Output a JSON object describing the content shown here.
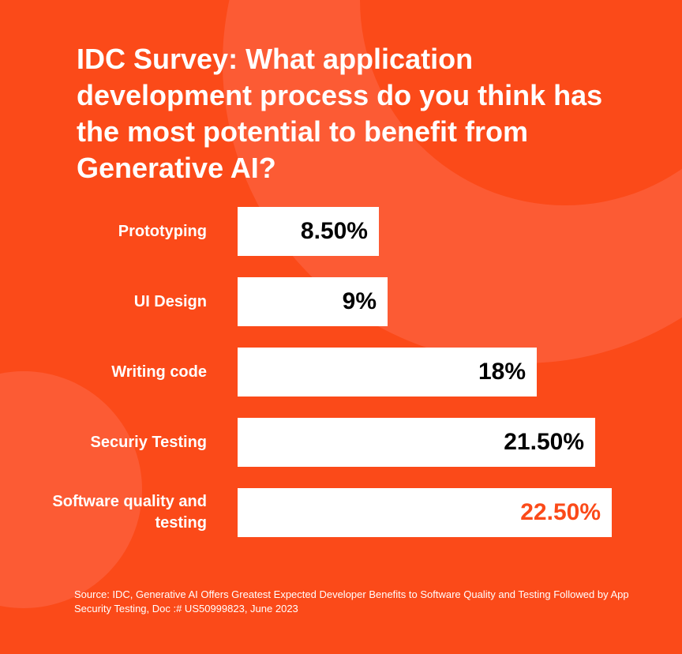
{
  "title": "IDC Survey: What application development process do you think has the most potential to benefit from Generative AI?",
  "source": "Source: IDC, Generative AI Offers Greatest Expected Developer Benefits to Software Quality and Testing Followed by App Security Testing, Doc :# US50999823, June 2023",
  "colors": {
    "background": "#fb4a19",
    "background_circle": "#fc5b34",
    "bar": "#ffffff",
    "value_text": "#000000",
    "highlight_value_text": "#fb4a19"
  },
  "chart_data": {
    "type": "bar",
    "orientation": "horizontal",
    "title": "IDC Survey: What application development process do you think has the most potential to benefit from Generative AI?",
    "categories": [
      "Prototyping",
      "UI Design",
      "Writing code",
      "Securiy Testing",
      "Software quality and testing"
    ],
    "values": [
      8.5,
      9,
      18,
      21.5,
      22.5
    ],
    "value_labels": [
      "8.50%",
      "9%",
      "18%",
      "21.50%",
      "22.50%"
    ],
    "highlight_index": 4,
    "xlim": [
      0,
      22.5
    ],
    "grid": false,
    "legend": "none"
  }
}
